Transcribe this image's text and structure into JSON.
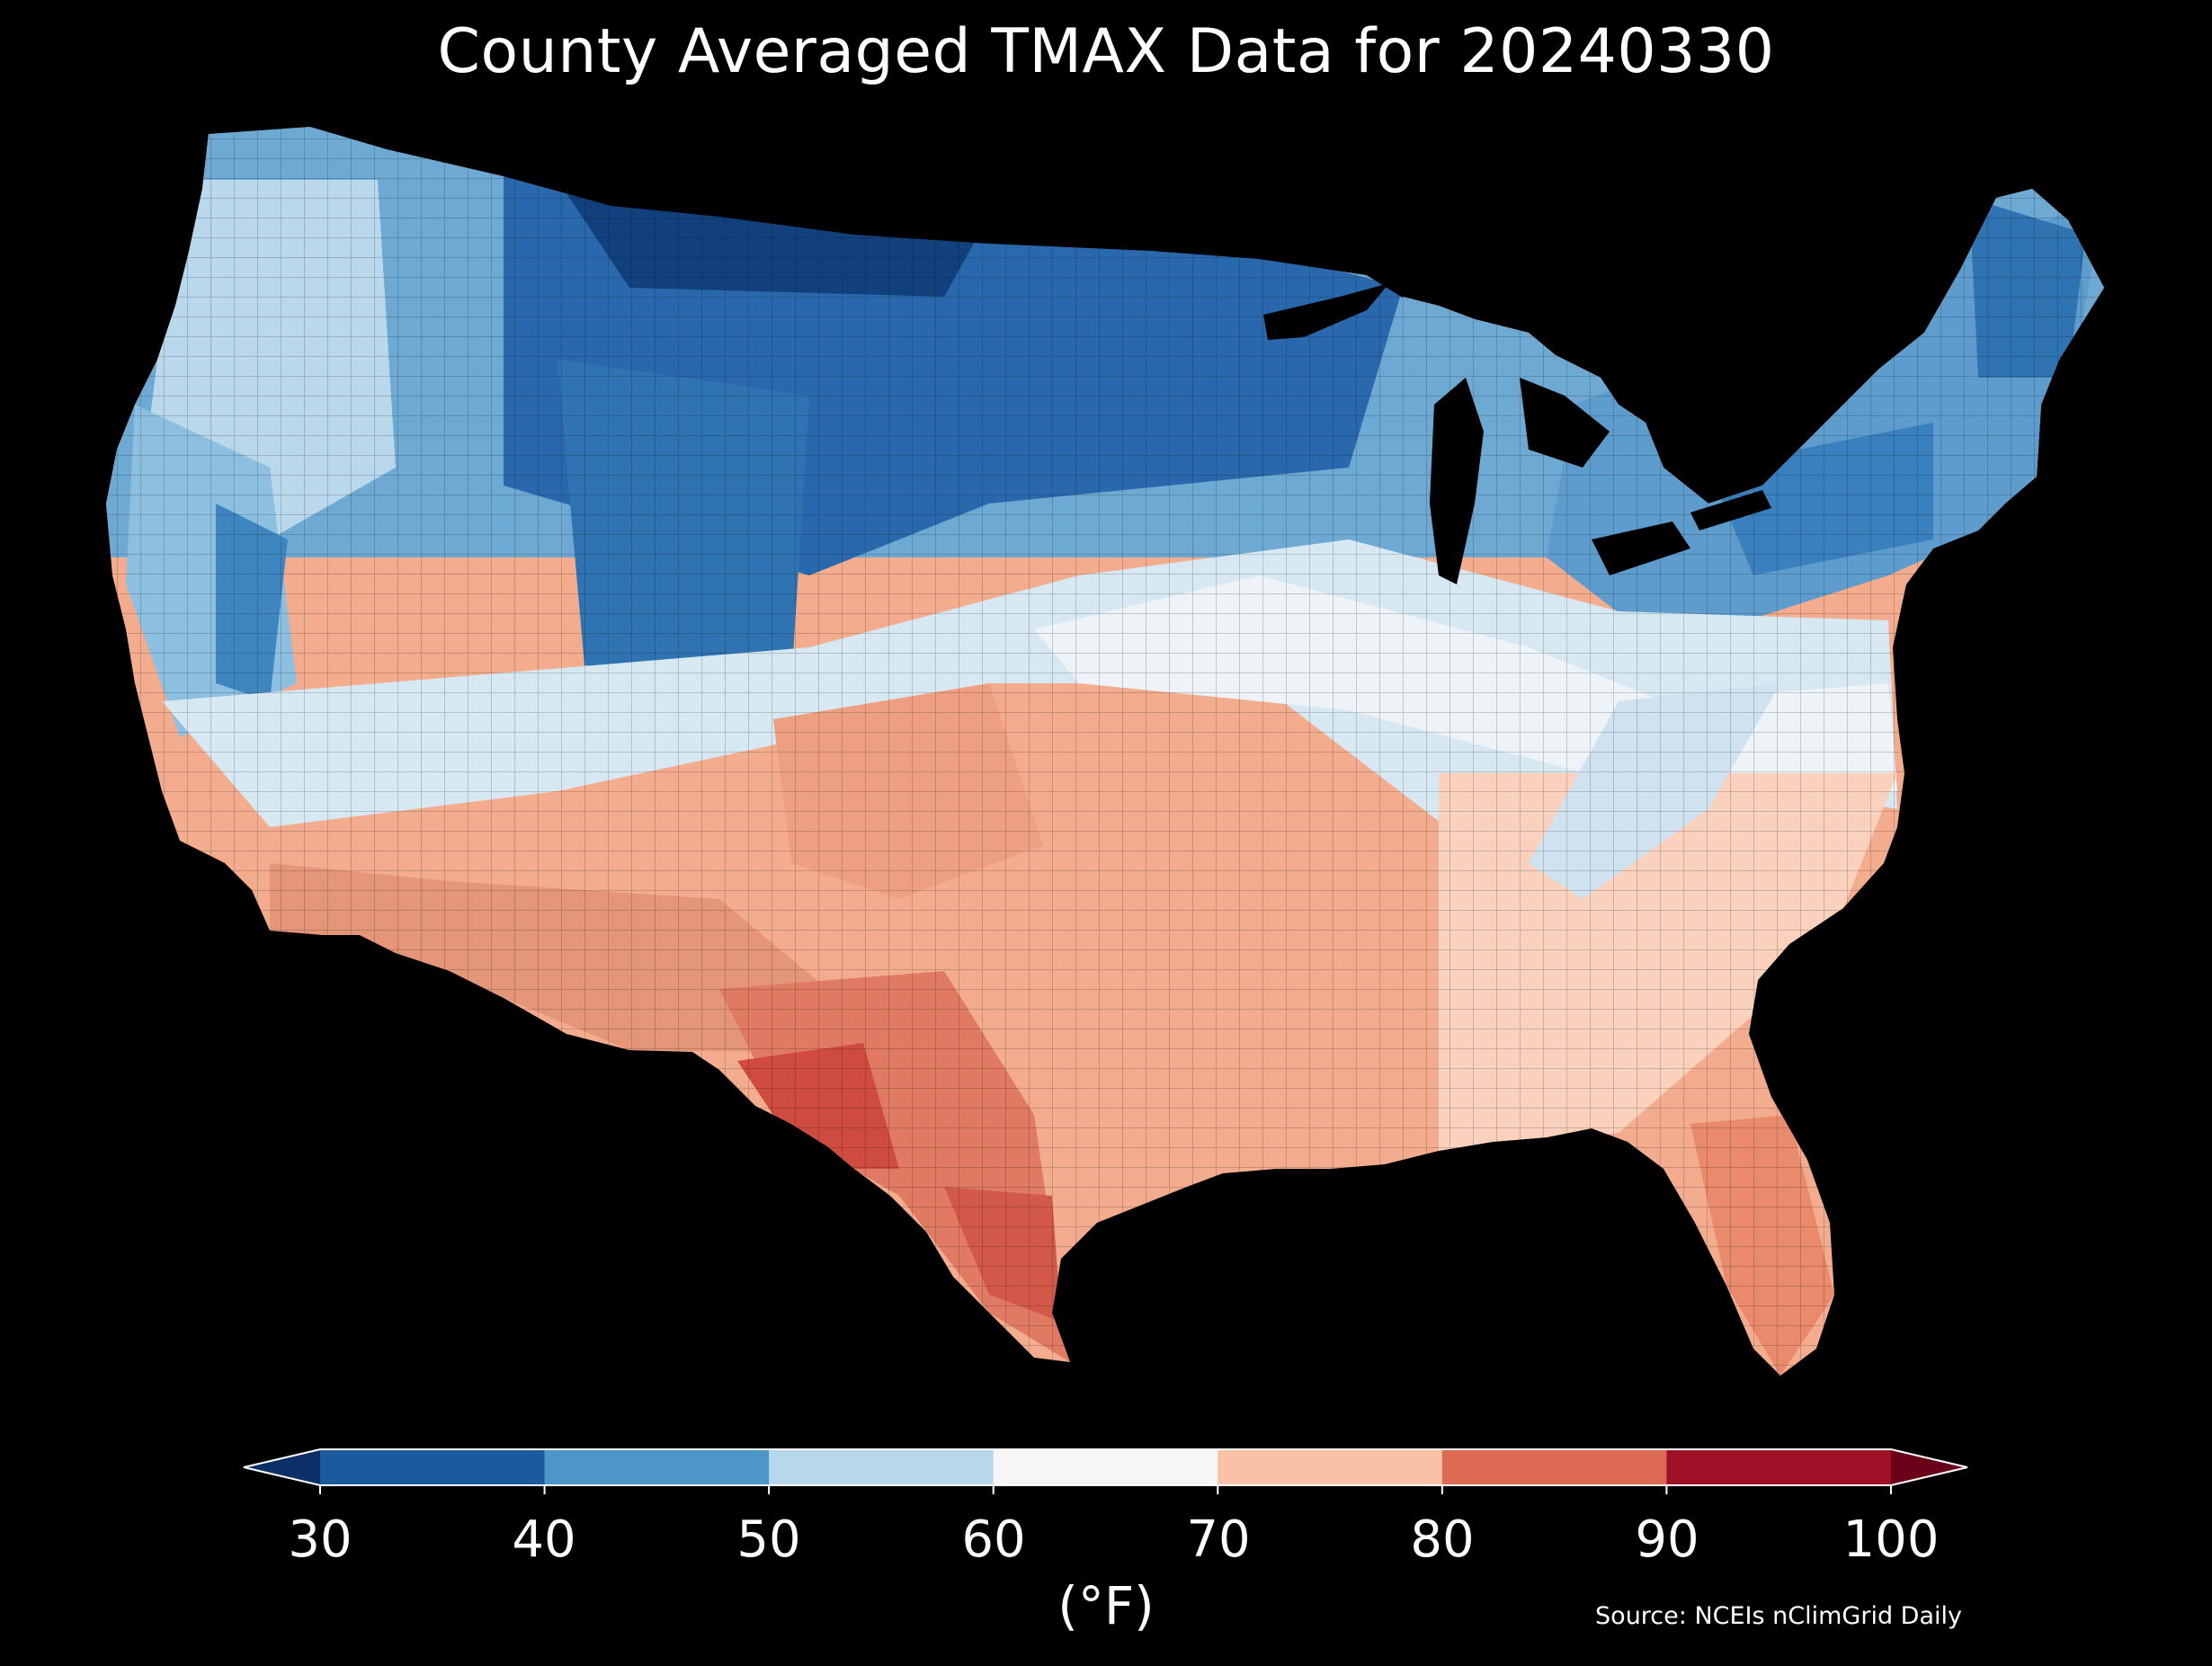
{
  "title": "County Averaged TMAX Data for 20240330",
  "map": {
    "type": "choropleth",
    "region": "contiguous United States, by county",
    "variable": "TMAX",
    "date": "20240330",
    "regional_summary": [
      {
        "region": "northern plains / upper midwest",
        "band": "30-40"
      },
      {
        "region": "northern rockies",
        "band": "30-50"
      },
      {
        "region": "pacific northwest",
        "band": "40-60"
      },
      {
        "region": "northeast / great lakes",
        "band": "40-60"
      },
      {
        "region": "southwest desert",
        "band": "70-90"
      },
      {
        "region": "south texas",
        "band": "80-90"
      },
      {
        "region": "southern great plains",
        "band": "70-90"
      },
      {
        "region": "southeast",
        "band": "60-80"
      },
      {
        "region": "south florida",
        "band": "80-90"
      }
    ],
    "background": "#000000"
  },
  "colorbar": {
    "ticks": [
      "30",
      "40",
      "50",
      "60",
      "70",
      "80",
      "90",
      "100"
    ],
    "colors": [
      "#1c5a9e",
      "#4d96c8",
      "#b7d7ea",
      "#f6f6f6",
      "#f9c2a6",
      "#dc6a52",
      "#9e1027"
    ],
    "under_color": "#0b2f66",
    "over_color": "#6b0019",
    "extend": "both",
    "unit_label": "(°F)"
  },
  "source": "Source: NCEIs nClimGrid Daily"
}
